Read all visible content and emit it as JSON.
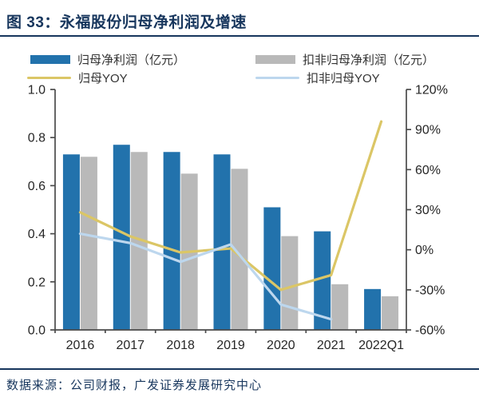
{
  "figure": {
    "title": "图 33：永福股份归母净利润及增速",
    "source": "数据来源：公司财报，广发证券发展研究中心"
  },
  "colors": {
    "title_navy": "#17365d",
    "bar_blue": "#2272ac",
    "bar_gray": "#b9b9b9",
    "line_gold": "#dbc666",
    "line_lightblue": "#bdd7ee",
    "axis": "#4a4a4a",
    "tick_text": "#262626"
  },
  "legend": [
    {
      "label": "归母净利润（亿元）",
      "type": "bar",
      "color": "#2272ac"
    },
    {
      "label": "扣非归母净利润（亿元）",
      "type": "bar",
      "color": "#b9b9b9"
    },
    {
      "label": "归母YOY",
      "type": "line",
      "color": "#dbc666"
    },
    {
      "label": "扣非归母YOY",
      "type": "line",
      "color": "#bdd7ee"
    }
  ],
  "chart_data": {
    "type": "bar",
    "subtype": "combo-bar-line-dual-axis",
    "title": "永福股份归母净利润及增速",
    "categories": [
      "2016",
      "2017",
      "2018",
      "2019",
      "2020",
      "2021",
      "2022Q1"
    ],
    "series": [
      {
        "name": "归母净利润（亿元）",
        "type": "bar",
        "axis": "left",
        "color": "#2272ac",
        "values": [
          0.73,
          0.77,
          0.74,
          0.73,
          0.51,
          0.41,
          0.17
        ]
      },
      {
        "name": "扣非归母净利润（亿元）",
        "type": "bar",
        "axis": "left",
        "color": "#b9b9b9",
        "values": [
          0.72,
          0.74,
          0.65,
          0.67,
          0.39,
          0.19,
          0.14
        ]
      },
      {
        "name": "归母YOY",
        "type": "line",
        "axis": "right",
        "color": "#dbc666",
        "values": [
          28,
          10,
          -2,
          1,
          -30,
          -19,
          96
        ]
      },
      {
        "name": "扣非归母YOY",
        "type": "line",
        "axis": "right",
        "color": "#bdd7ee",
        "values": [
          12,
          5,
          -9,
          4,
          -41,
          -52,
          null
        ]
      }
    ],
    "left_axis": {
      "min": 0,
      "max": 1,
      "step": 0.2,
      "tick_labels": [
        "0.0",
        "0.2",
        "0.4",
        "0.6",
        "0.8",
        "1.0"
      ]
    },
    "right_axis": {
      "min": -60,
      "max": 120,
      "step": 30,
      "tick_labels": [
        "-60%",
        "-30%",
        "0%",
        "30%",
        "60%",
        "90%",
        "120%"
      ]
    },
    "grid": false,
    "legend_position": "top"
  }
}
